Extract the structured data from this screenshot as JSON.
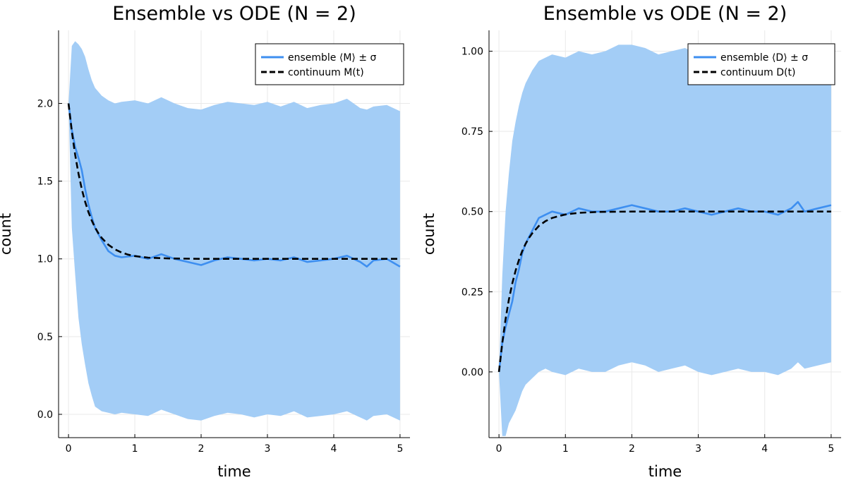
{
  "chart_data": [
    {
      "type": "line",
      "title": "Ensemble vs ODE (N = 2)",
      "xlabel": "time",
      "ylabel": "count",
      "xlim": [
        -0.15,
        5.15
      ],
      "ylim": [
        -0.15,
        2.47
      ],
      "xticks": [
        "0",
        "1",
        "2",
        "3",
        "4",
        "5"
      ],
      "yticks": [
        "0.0",
        "0.5",
        "1.0",
        "1.5",
        "2.0"
      ],
      "grid": true,
      "legend_position": "top-right",
      "band_color": "#a3cdf6",
      "mean_color": "#3e8ff0",
      "ode_color": "#000000",
      "series": [
        {
          "name": "ensemble ⟨M⟩ ± σ",
          "style": "line-with-band",
          "x": [
            0,
            0.05,
            0.1,
            0.15,
            0.2,
            0.25,
            0.3,
            0.35,
            0.4,
            0.5,
            0.6,
            0.7,
            0.8,
            1.0,
            1.2,
            1.4,
            1.6,
            1.8,
            2.0,
            2.2,
            2.4,
            2.6,
            2.8,
            3.0,
            3.2,
            3.4,
            3.6,
            3.8,
            4.0,
            4.2,
            4.4,
            4.5,
            4.6,
            4.8,
            5.0
          ],
          "mean": [
            2.0,
            1.83,
            1.72,
            1.65,
            1.57,
            1.45,
            1.35,
            1.27,
            1.2,
            1.12,
            1.05,
            1.02,
            1.01,
            1.02,
            1.0,
            1.03,
            1.0,
            0.98,
            0.96,
            0.99,
            1.01,
            1.0,
            0.99,
            1.0,
            0.99,
            1.01,
            0.98,
            0.99,
            1.0,
            1.02,
            0.98,
            0.95,
            0.99,
            1.0,
            0.95
          ],
          "upper": [
            2.0,
            2.37,
            2.4,
            2.38,
            2.35,
            2.3,
            2.22,
            2.15,
            2.1,
            2.05,
            2.02,
            2.0,
            2.01,
            2.02,
            2.0,
            2.04,
            2.0,
            1.97,
            1.96,
            1.99,
            2.01,
            2.0,
            1.99,
            2.01,
            1.98,
            2.01,
            1.97,
            1.99,
            2.0,
            2.03,
            1.97,
            1.96,
            1.98,
            1.99,
            1.95
          ],
          "lower": [
            2.0,
            1.2,
            0.9,
            0.62,
            0.45,
            0.32,
            0.2,
            0.12,
            0.05,
            0.02,
            0.01,
            0.0,
            0.01,
            0.0,
            -0.01,
            0.03,
            0.0,
            -0.03,
            -0.04,
            -0.01,
            0.01,
            0.0,
            -0.02,
            0.0,
            -0.01,
            0.02,
            -0.02,
            -0.01,
            0.0,
            0.02,
            -0.02,
            -0.04,
            -0.01,
            0.0,
            -0.04
          ]
        },
        {
          "name": "continuum M(t)",
          "style": "dashed",
          "x": [
            0,
            0.05,
            0.1,
            0.15,
            0.2,
            0.25,
            0.3,
            0.35,
            0.4,
            0.45,
            0.5,
            0.6,
            0.7,
            0.8,
            0.9,
            1.0,
            1.2,
            1.5,
            2.0,
            3.0,
            4.0,
            5.0
          ],
          "values": [
            2.0,
            1.819,
            1.67,
            1.549,
            1.449,
            1.368,
            1.301,
            1.247,
            1.202,
            1.165,
            1.135,
            1.091,
            1.061,
            1.041,
            1.027,
            1.018,
            1.008,
            1.003,
            1.0,
            1.0,
            1.0,
            1.0
          ]
        }
      ]
    },
    {
      "type": "line",
      "title": "Ensemble vs ODE (N = 2)",
      "xlabel": "time",
      "ylabel": "count",
      "xlim": [
        -0.15,
        5.15
      ],
      "ylim": [
        -0.205,
        1.065
      ],
      "xticks": [
        "0",
        "1",
        "2",
        "3",
        "4",
        "5"
      ],
      "yticks": [
        "0.00",
        "0.25",
        "0.50",
        "0.75",
        "1.00"
      ],
      "grid": true,
      "legend_position": "top-right",
      "band_color": "#a3cdf6",
      "mean_color": "#3e8ff0",
      "ode_color": "#000000",
      "series": [
        {
          "name": "ensemble ⟨D⟩ ± σ",
          "style": "line-with-band",
          "x": [
            0,
            0.05,
            0.1,
            0.15,
            0.2,
            0.25,
            0.3,
            0.35,
            0.4,
            0.5,
            0.6,
            0.7,
            0.8,
            1.0,
            1.2,
            1.4,
            1.6,
            1.8,
            2.0,
            2.2,
            2.4,
            2.6,
            2.8,
            3.0,
            3.2,
            3.4,
            3.6,
            3.8,
            4.0,
            4.2,
            4.4,
            4.5,
            4.6,
            4.8,
            5.0
          ],
          "mean": [
            0.0,
            0.09,
            0.14,
            0.18,
            0.22,
            0.28,
            0.32,
            0.37,
            0.4,
            0.44,
            0.48,
            0.49,
            0.5,
            0.49,
            0.51,
            0.5,
            0.5,
            0.51,
            0.52,
            0.51,
            0.5,
            0.5,
            0.51,
            0.5,
            0.49,
            0.5,
            0.51,
            0.5,
            0.5,
            0.49,
            0.51,
            0.53,
            0.5,
            0.51,
            0.52
          ],
          "upper": [
            0.0,
            0.3,
            0.5,
            0.62,
            0.72,
            0.78,
            0.83,
            0.87,
            0.9,
            0.94,
            0.97,
            0.98,
            0.99,
            0.98,
            1.0,
            0.99,
            1.0,
            1.02,
            1.02,
            1.01,
            0.99,
            1.0,
            1.01,
            0.99,
            0.98,
            1.0,
            1.01,
            1.0,
            0.99,
            0.98,
            1.0,
            1.02,
            0.99,
            1.0,
            1.01
          ],
          "lower": [
            0.0,
            -0.2,
            -0.2,
            -0.16,
            -0.14,
            -0.12,
            -0.09,
            -0.06,
            -0.04,
            -0.02,
            0.0,
            0.01,
            0.0,
            -0.01,
            0.01,
            0.0,
            0.0,
            0.02,
            0.03,
            0.02,
            0.0,
            0.01,
            0.02,
            0.0,
            -0.01,
            0.0,
            0.01,
            0.0,
            0.0,
            -0.01,
            0.01,
            0.03,
            0.01,
            0.02,
            0.03
          ]
        },
        {
          "name": "continuum D(t)",
          "style": "dashed",
          "x": [
            0,
            0.05,
            0.1,
            0.15,
            0.2,
            0.25,
            0.3,
            0.35,
            0.4,
            0.45,
            0.5,
            0.6,
            0.7,
            0.8,
            0.9,
            1.0,
            1.2,
            1.5,
            2.0,
            3.0,
            4.0,
            5.0
          ],
          "values": [
            0.0,
            0.09,
            0.165,
            0.226,
            0.276,
            0.316,
            0.349,
            0.377,
            0.399,
            0.417,
            0.432,
            0.455,
            0.47,
            0.48,
            0.486,
            0.491,
            0.496,
            0.499,
            0.5,
            0.5,
            0.5,
            0.5
          ]
        }
      ]
    }
  ]
}
